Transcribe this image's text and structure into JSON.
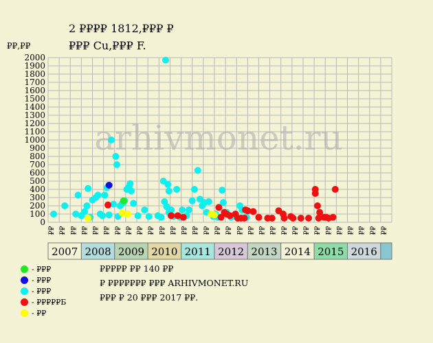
{
  "title_line1": "2 ₽₽₽₽ 1812,₽₽₽ ₽",
  "title_line2": "₽₽₽ Cu,₽₽₽ F.",
  "colors": {
    "bg": "#f5f3d6",
    "grid": "#b8b8b8"
  },
  "legend": [
    {
      "label": "- ₽₽₽",
      "color": "#22e822"
    },
    {
      "label": "- ₽₽₽",
      "color": "#1010dd"
    },
    {
      "label": "- ₽₽₽",
      "color": "#11eeee"
    },
    {
      "label": "- ₽₽₽₽₽Б",
      "color": "#ee1111"
    },
    {
      "label": "- ₽₽",
      "color": "#ffff00"
    }
  ],
  "notes": [
    "₽₽₽₽₽ ₽₽ 140 ₽₽",
    "₽ ₽₽₽₽₽₽₽ ₽₽₽ ARHIVMONET.RU",
    "₽₽₽ ₽ 20 ₽₽₽ 2017 ₽₽."
  ],
  "watermark": "arhivmonet.ru",
  "chart_data": {
    "type": "scatter",
    "ylabel": "₽₽,₽₽",
    "ylim": [
      0,
      2000
    ],
    "ytick_step": 100,
    "x_quarter_labels": [
      "₽₽",
      "₽₽",
      "₽₽"
    ],
    "years": [
      {
        "label": "2007",
        "color": "#f5f3d6"
      },
      {
        "label": "2008",
        "color": "#b3dcdc"
      },
      {
        "label": "2009",
        "color": "#b8d4b2"
      },
      {
        "label": "2010",
        "color": "#e2d8a6"
      },
      {
        "label": "2011",
        "color": "#a6e6dc"
      },
      {
        "label": "2012",
        "color": "#d6c8d6"
      },
      {
        "label": "2013",
        "color": "#c2d6c2"
      },
      {
        "label": "2014",
        "color": "#f5f3d6"
      },
      {
        "label": "2015",
        "color": "#8edba8"
      },
      {
        "label": "2016",
        "color": "#ccd8dc"
      }
    ],
    "series": [
      {
        "color": "#11eeee",
        "points": [
          [
            0,
            100
          ],
          [
            1,
            200
          ],
          [
            2,
            100
          ],
          [
            2.2,
            330
          ],
          [
            2.5,
            80
          ],
          [
            2.8,
            130
          ],
          [
            3,
            200
          ],
          [
            3.1,
            410
          ],
          [
            3.3,
            60
          ],
          [
            3.5,
            270
          ],
          [
            3.8,
            300
          ],
          [
            4,
            330
          ],
          [
            4.2,
            100
          ],
          [
            4.4,
            80
          ],
          [
            4.6,
            330
          ],
          [
            4.8,
            420
          ],
          [
            5,
            90
          ],
          [
            5.2,
            1000
          ],
          [
            5.4,
            220
          ],
          [
            5.6,
            800
          ],
          [
            5.7,
            700
          ],
          [
            5.8,
            70
          ],
          [
            6,
            200
          ],
          [
            6.2,
            230
          ],
          [
            6.4,
            260
          ],
          [
            6.6,
            400
          ],
          [
            6.8,
            430
          ],
          [
            6.9,
            470
          ],
          [
            7,
            380
          ],
          [
            7.2,
            230
          ],
          [
            7.6,
            80
          ],
          [
            8.2,
            150
          ],
          [
            8.6,
            70
          ],
          [
            9.4,
            80
          ],
          [
            9.7,
            60
          ],
          [
            9.9,
            500
          ],
          [
            10.1,
            1970
          ],
          [
            10.3,
            460
          ],
          [
            10.4,
            380
          ],
          [
            10.6,
            150
          ],
          [
            10,
            250
          ],
          [
            10.2,
            190
          ],
          [
            10.4,
            120
          ],
          [
            10.8,
            70
          ],
          [
            11.1,
            400
          ],
          [
            11.4,
            60
          ],
          [
            11.6,
            150
          ],
          [
            12,
            80
          ],
          [
            12.2,
            150
          ],
          [
            12.5,
            260
          ],
          [
            12.7,
            400
          ],
          [
            13,
            630
          ],
          [
            13.2,
            280
          ],
          [
            13.4,
            200
          ],
          [
            13.6,
            240
          ],
          [
            13.8,
            120
          ],
          [
            14,
            250
          ],
          [
            14.4,
            70
          ],
          [
            14.6,
            100
          ],
          [
            14.8,
            60
          ],
          [
            15.2,
            390
          ],
          [
            15.3,
            240
          ],
          [
            15.6,
            120
          ],
          [
            16,
            60
          ],
          [
            16.8,
            200
          ],
          [
            17,
            150
          ],
          [
            17.4,
            60
          ]
        ]
      },
      {
        "color": "#1010dd",
        "points": [
          [
            5,
            450
          ]
        ]
      },
      {
        "color": "#22e822",
        "points": [
          [
            6.3,
            260
          ]
        ]
      },
      {
        "color": "#ffff00",
        "points": [
          [
            3.1,
            50
          ],
          [
            6.2,
            110
          ],
          [
            6.7,
            100
          ],
          [
            14.2,
            100
          ],
          [
            14.5,
            90
          ]
        ]
      },
      {
        "color": "#ee1111",
        "points": [
          [
            4.9,
            210
          ],
          [
            10.6,
            80
          ],
          [
            11.2,
            80
          ],
          [
            11.7,
            60
          ],
          [
            14.9,
            180
          ],
          [
            15.1,
            60
          ],
          [
            15.4,
            120
          ],
          [
            15.6,
            100
          ],
          [
            15.9,
            80
          ],
          [
            16.4,
            100
          ],
          [
            16.6,
            50
          ],
          [
            16.9,
            50
          ],
          [
            17.2,
            50
          ],
          [
            17.3,
            150
          ],
          [
            17.5,
            140
          ],
          [
            18,
            130
          ],
          [
            18.5,
            60
          ],
          [
            19.3,
            50
          ],
          [
            19.7,
            50
          ],
          [
            20.3,
            140
          ],
          [
            20.7,
            100
          ],
          [
            20.8,
            50
          ],
          [
            21.4,
            70
          ],
          [
            21.6,
            50
          ],
          [
            22.3,
            50
          ],
          [
            23,
            50
          ],
          [
            23.6,
            400
          ],
          [
            23.6,
            350
          ],
          [
            23.8,
            200
          ],
          [
            24,
            120
          ],
          [
            23.9,
            50
          ],
          [
            24.4,
            60
          ],
          [
            24.6,
            60
          ],
          [
            24.8,
            50
          ],
          [
            25.2,
            60
          ],
          [
            25.4,
            400
          ]
        ]
      }
    ]
  }
}
